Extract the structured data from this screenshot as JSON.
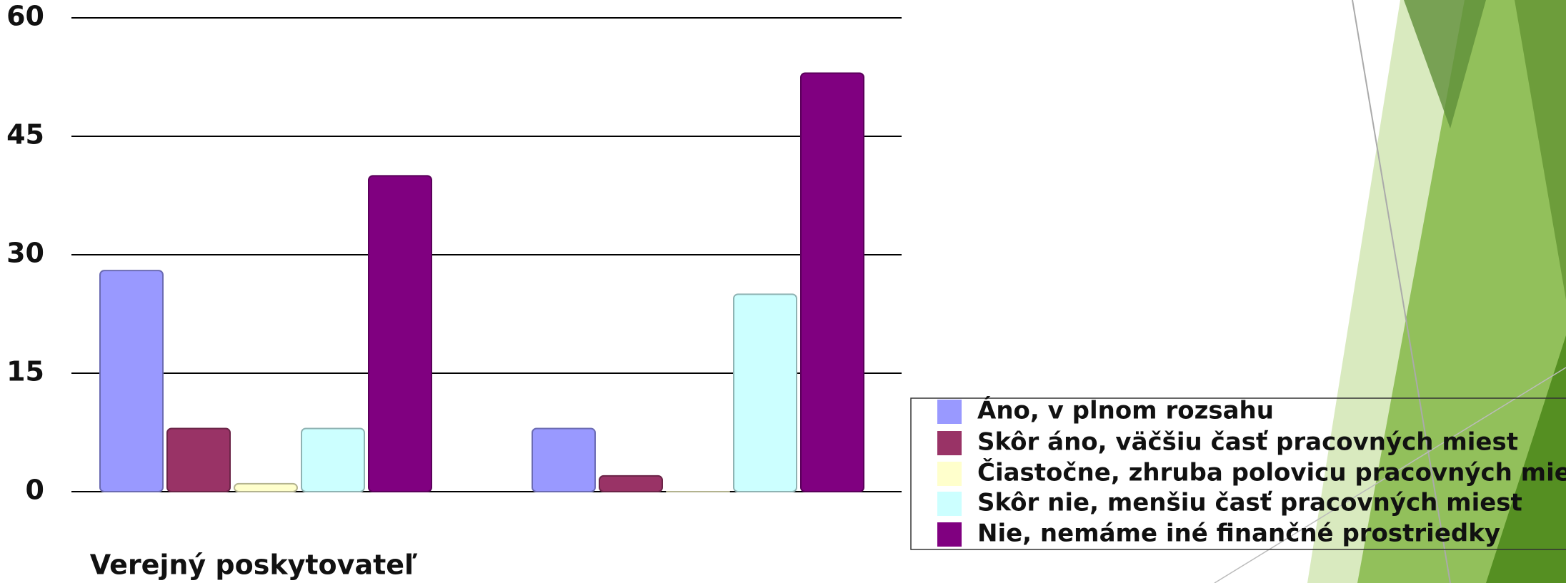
{
  "chart_data": {
    "type": "bar",
    "categories": [
      "Verejný poskytovateľ",
      null
    ],
    "series": [
      {
        "name": "Áno, v plnom rozsahu",
        "color": "#9999ff",
        "values": [
          28,
          8
        ]
      },
      {
        "name": "Skôr áno, väčšiu časť pracovných miest",
        "color": "#993366",
        "values": [
          8,
          2
        ]
      },
      {
        "name": "Čiastočne, zhruba polovicu pracovných miest",
        "color": "#ffffcc",
        "values": [
          1,
          0
        ]
      },
      {
        "name": "Skôr nie, menšiu časť pracovných miest",
        "color": "#ccffff",
        "values": [
          8,
          25
        ]
      },
      {
        "name": "Nie, nemáme iné finančné prostriedky",
        "color": "#800080",
        "values": [
          40,
          53
        ]
      }
    ],
    "ylim": [
      0,
      60
    ],
    "yticks": [
      0,
      15,
      30,
      45,
      60
    ],
    "grid": true,
    "legend": "right"
  }
}
